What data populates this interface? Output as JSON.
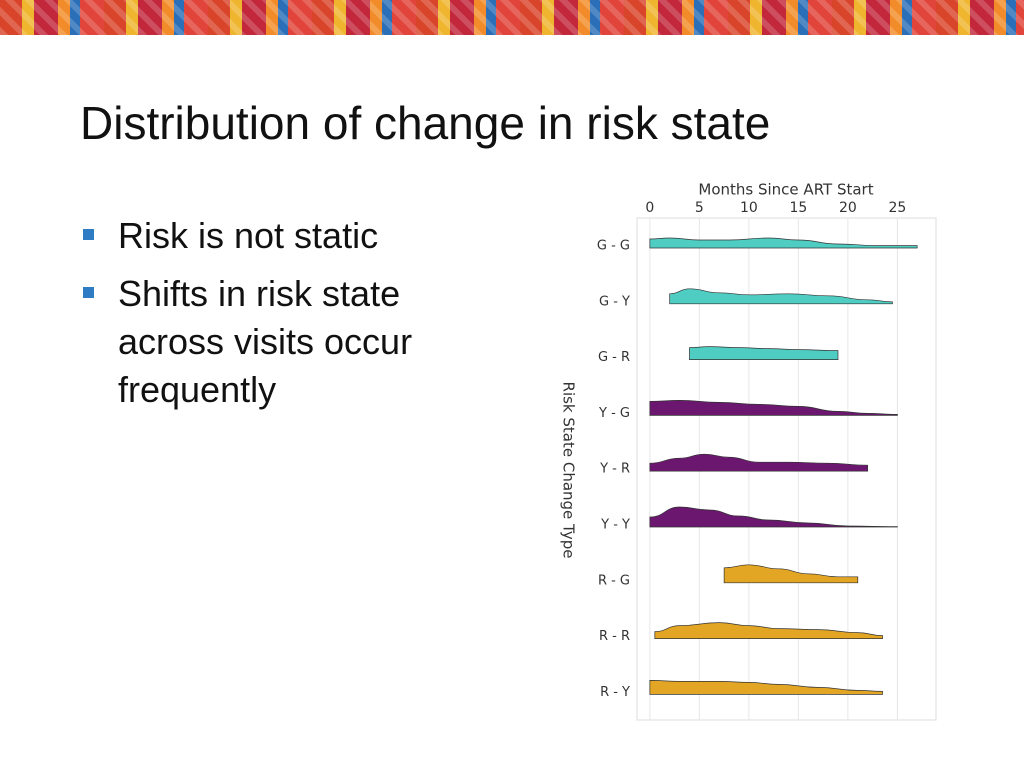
{
  "slide": {
    "title": "Distribution of change in risk state",
    "bullets": [
      "Risk is not static",
      "Shifts in risk state across visits occur frequently"
    ]
  },
  "chart_data": {
    "type": "ridgeline",
    "x_label": "Months Since ART Start",
    "y_label": "Risk State Change Type",
    "categories": [
      "G - G",
      "G - Y",
      "G - R",
      "Y - G",
      "Y - R",
      "Y - Y",
      "R - G",
      "R - R",
      "R - Y"
    ],
    "xlim": [
      -1.3,
      28.9
    ],
    "xticks": [
      0,
      5,
      10,
      15,
      20,
      25
    ],
    "grid": true,
    "series": [
      {
        "color": "#4fcdc2",
        "x": [
          0,
          2,
          5,
          8,
          12,
          15,
          19,
          23,
          27
        ],
        "values": [
          0.45,
          0.5,
          0.4,
          0.4,
          0.5,
          0.4,
          0.2,
          0.12,
          0.12
        ]
      },
      {
        "color": "#4fcdc2",
        "x": [
          2,
          4,
          7,
          10,
          14,
          18,
          22,
          24.5
        ],
        "values": [
          0.5,
          0.75,
          0.55,
          0.45,
          0.5,
          0.4,
          0.2,
          0.1
        ]
      },
      {
        "color": "#4fcdc2",
        "x": [
          4,
          6,
          9,
          12,
          15,
          19
        ],
        "values": [
          0.6,
          0.65,
          0.6,
          0.55,
          0.5,
          0.45
        ]
      },
      {
        "color": "#6b176f",
        "x": [
          0,
          3,
          7,
          11,
          15,
          19,
          22,
          25
        ],
        "values": [
          0.7,
          0.75,
          0.65,
          0.55,
          0.45,
          0.2,
          0.1,
          0.05
        ]
      },
      {
        "color": "#6b176f",
        "x": [
          0,
          3,
          5.5,
          8,
          11,
          14,
          18,
          22
        ],
        "values": [
          0.4,
          0.65,
          0.85,
          0.7,
          0.45,
          0.45,
          0.4,
          0.3
        ]
      },
      {
        "color": "#6b176f",
        "x": [
          0,
          3,
          6,
          9,
          12,
          16,
          20,
          25
        ],
        "values": [
          0.5,
          1.0,
          0.85,
          0.55,
          0.35,
          0.2,
          0.05,
          0.02
        ]
      },
      {
        "color": "#e2a524",
        "x": [
          7.5,
          10,
          13,
          16,
          19,
          21
        ],
        "values": [
          0.75,
          0.9,
          0.7,
          0.45,
          0.3,
          0.3
        ]
      },
      {
        "color": "#e2a524",
        "x": [
          0.5,
          3,
          7,
          10,
          13,
          17,
          21,
          23.5
        ],
        "values": [
          0.35,
          0.65,
          0.8,
          0.65,
          0.5,
          0.45,
          0.3,
          0.15
        ]
      },
      {
        "color": "#e2a524",
        "x": [
          0,
          3,
          7,
          10,
          13,
          17,
          21,
          23.5
        ],
        "values": [
          0.7,
          0.65,
          0.65,
          0.6,
          0.5,
          0.35,
          0.2,
          0.15
        ]
      }
    ]
  }
}
